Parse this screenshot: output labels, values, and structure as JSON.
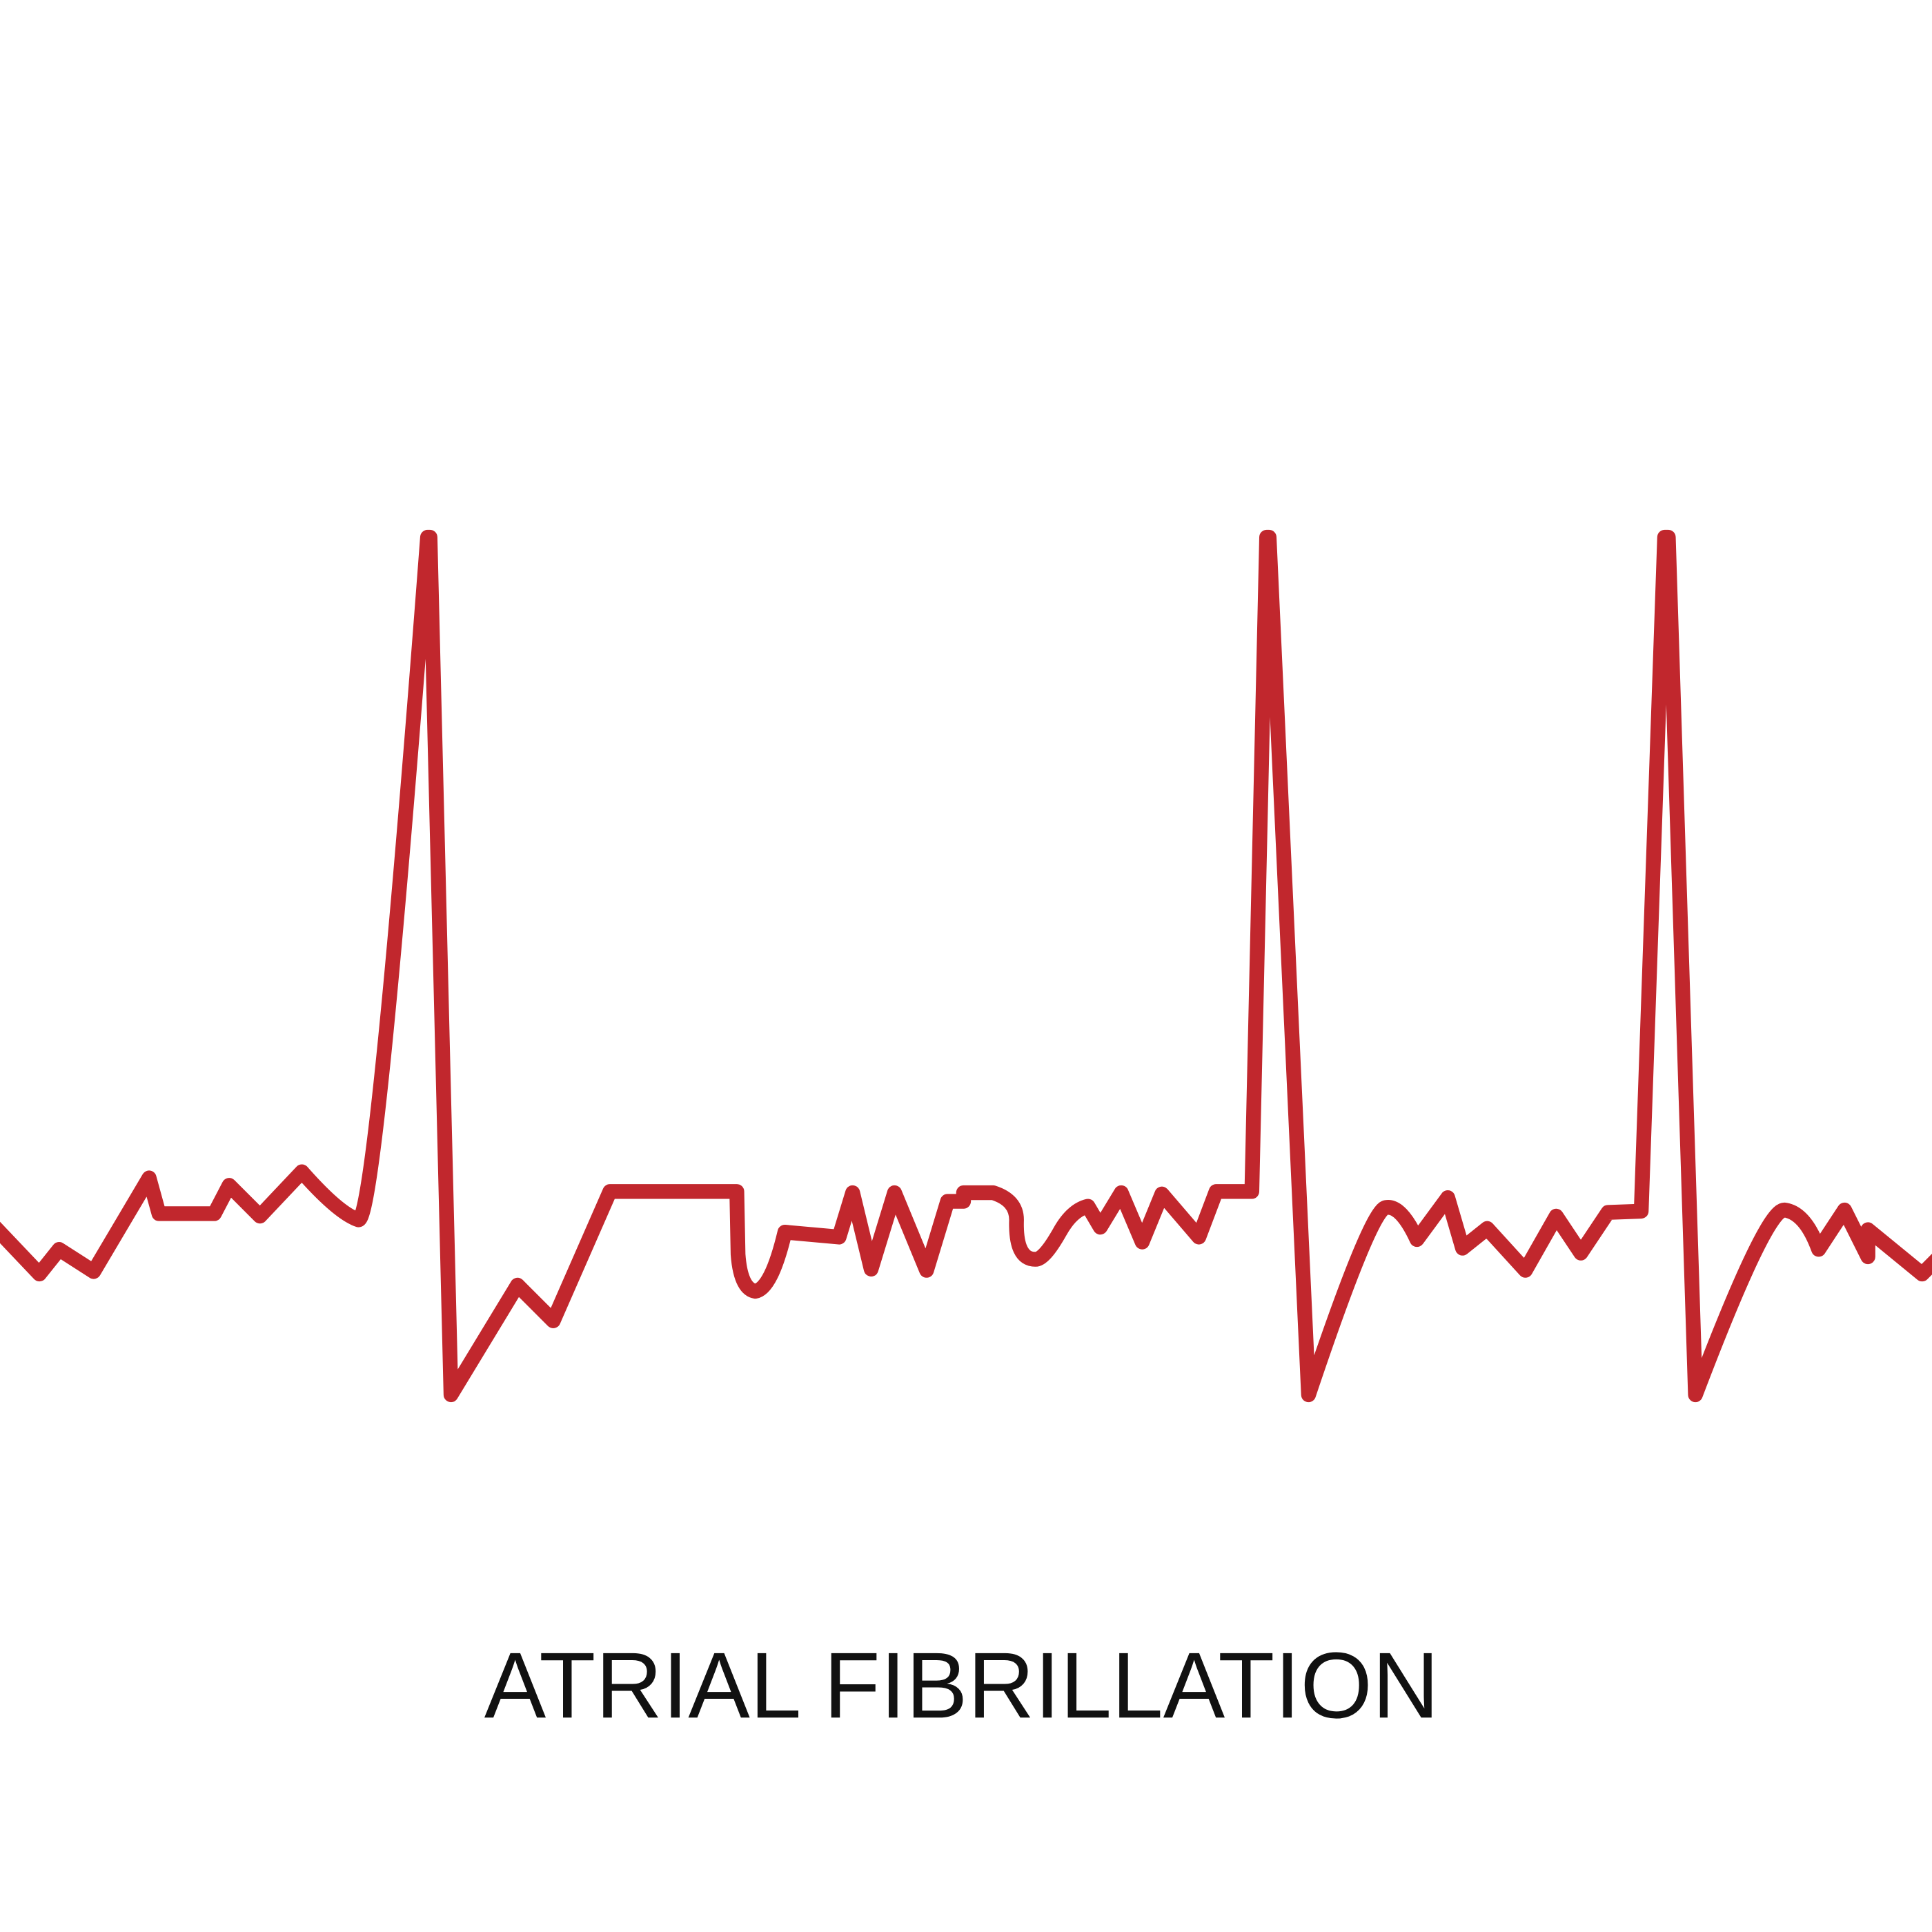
{
  "illustration": {
    "title": "ATRIAL FIBRILLATION",
    "trace_color": "#c1272d",
    "text_color": "#111111",
    "background": "#ffffff",
    "depiction": "ecg-trace"
  }
}
